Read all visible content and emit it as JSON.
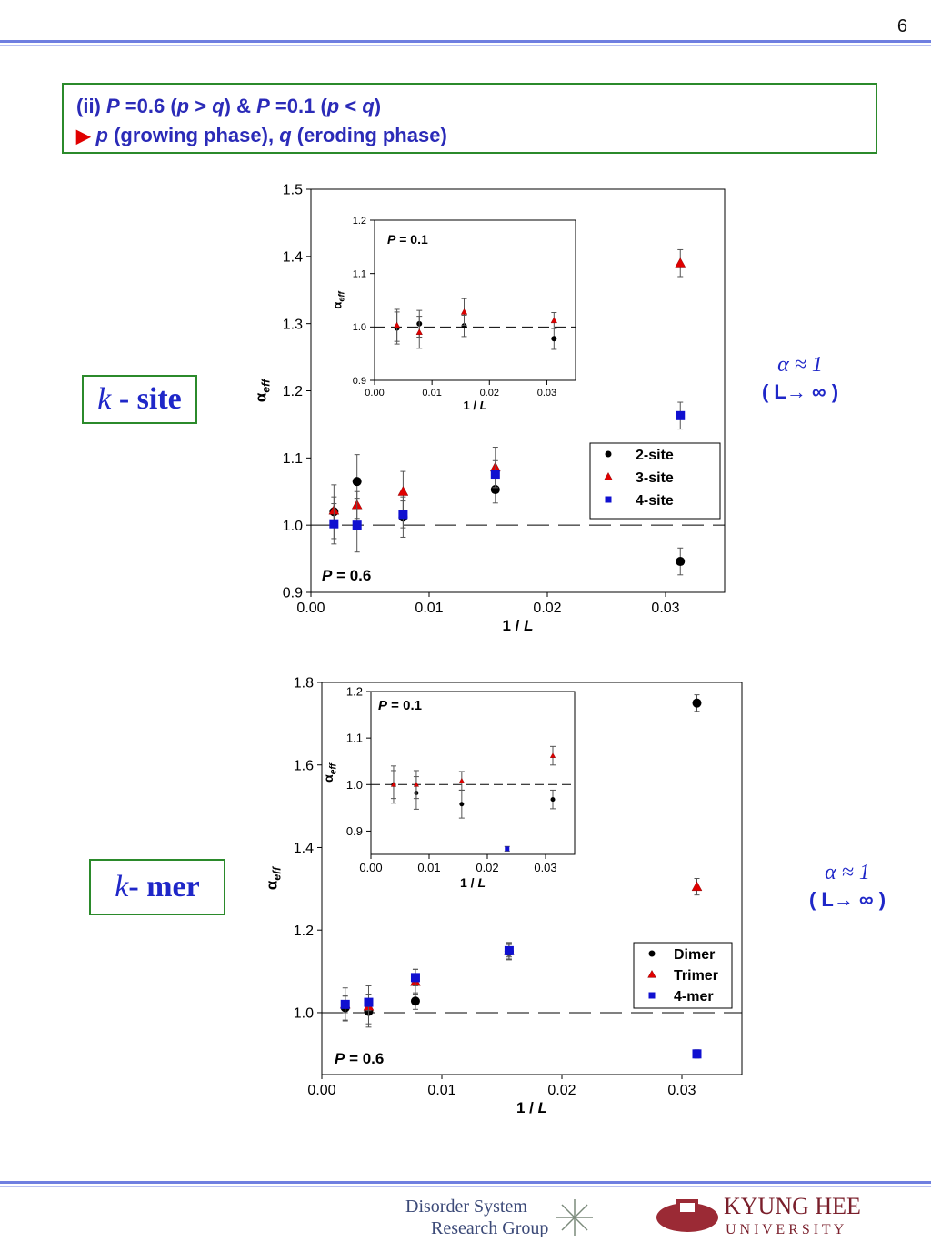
{
  "page_number": "6",
  "heading": {
    "line1_pre": "(ii) ",
    "line1_P": "P",
    "line1_a": " =0.6 (",
    "line1_p": "p",
    "line1_b": " > ",
    "line1_q": "q",
    "line1_c": ")  &  ",
    "line1_P2": "P",
    "line1_d": " =0.1 (",
    "line1_p2": "p",
    "line1_e": " < ",
    "line1_q2": "q",
    "line1_f": ")",
    "line2_arrow": "▶",
    "line2_p": "p",
    "line2_a": " (growing phase), ",
    "line2_q": "q",
    "line2_b": " (eroding phase)"
  },
  "labels": {
    "ksite_k": "k",
    "ksite_rest": " - site",
    "kmer_k": "k",
    "kmer_rest": "- mer",
    "alpha_line": "α ≈ 1",
    "limit_line": "( L→ ∞ )"
  },
  "footer": {
    "dsrg_line1": "Disorder System",
    "dsrg_line2": "Research Group",
    "khu_line1": "KYUNG HEE",
    "khu_line2": "U N I V E R S I T Y"
  },
  "chart_data": [
    {
      "type": "scatter",
      "title": "",
      "xlabel": "1 / L",
      "ylabel": "αeff",
      "xlim": [
        0.0,
        0.035
      ],
      "ylim": [
        0.9,
        1.5
      ],
      "xticks": [
        "0.00",
        "0.01",
        "0.02",
        "0.03"
      ],
      "yticks": [
        "0.9",
        "1.0",
        "1.1",
        "1.2",
        "1.3",
        "1.4",
        "1.5"
      ],
      "annotation": "P = 0.6",
      "reference_line_y": 1.0,
      "legend_position": "right",
      "series": [
        {
          "name": "2-site",
          "marker": "circle",
          "color": "#000000",
          "x": [
            0.00195,
            0.0039,
            0.0078,
            0.0156,
            0.03125
          ],
          "y": [
            1.02,
            1.065,
            1.012,
            1.053,
            0.946
          ],
          "err": [
            0.04,
            0.04,
            0.03,
            0.02,
            0.02
          ]
        },
        {
          "name": "3-site",
          "marker": "triangle",
          "color": "#e00000",
          "x": [
            0.00195,
            0.0039,
            0.0078,
            0.0156,
            0.03125
          ],
          "y": [
            1.022,
            1.03,
            1.05,
            1.086,
            1.39
          ],
          "err": [
            0.02,
            0.02,
            0.03,
            0.03,
            0.02
          ]
        },
        {
          "name": "4-site",
          "marker": "square",
          "color": "#1010d0",
          "x": [
            0.00195,
            0.0039,
            0.0078,
            0.0156,
            0.03125
          ],
          "y": [
            1.002,
            1.0,
            1.016,
            1.076,
            1.163
          ],
          "err": [
            0.03,
            0.04,
            0.02,
            0.02,
            0.02
          ]
        }
      ],
      "inset": {
        "annotation": "P = 0.1",
        "xlabel": "1 / L",
        "ylabel": "αeff",
        "xlim": [
          0.0,
          0.035
        ],
        "ylim": [
          0.9,
          1.2
        ],
        "xticks": [
          "0.00",
          "0.01",
          "0.02",
          "0.03"
        ],
        "yticks": [
          "0.9",
          "1.0",
          "1.1",
          "1.2"
        ],
        "reference_line_y": 1.0,
        "series": [
          {
            "name": "2-site",
            "marker": "circle",
            "color": "#000000",
            "x": [
              0.0039,
              0.0078,
              0.0156,
              0.03125
            ],
            "y": [
              0.998,
              1.006,
              1.002,
              0.978
            ],
            "err": [
              0.03,
              0.025,
              0.02,
              0.02
            ]
          },
          {
            "name": "3-site",
            "marker": "triangle",
            "color": "#e00000",
            "x": [
              0.0039,
              0.0078,
              0.0156,
              0.03125
            ],
            "y": [
              1.003,
              0.99,
              1.028,
              1.012
            ],
            "err": [
              0.03,
              0.03,
              0.025,
              0.015
            ]
          }
        ]
      }
    },
    {
      "type": "scatter",
      "title": "",
      "xlabel": "1 / L",
      "ylabel": "αeff",
      "xlim": [
        0.0,
        0.035
      ],
      "ylim": [
        0.85,
        1.8
      ],
      "xticks": [
        "0.00",
        "0.01",
        "0.02",
        "0.03"
      ],
      "yticks": [
        "1.0",
        "1.2",
        "1.4",
        "1.6",
        "1.8"
      ],
      "annotation": "P = 0.6",
      "reference_line_y": 1.0,
      "legend_position": "bottom-right",
      "series": [
        {
          "name": "Dimer",
          "marker": "circle",
          "color": "#000000",
          "x": [
            0.00195,
            0.0039,
            0.0078,
            0.0156,
            0.03125
          ],
          "y": [
            1.012,
            1.003,
            1.028,
            1.148,
            1.75
          ],
          "err": [
            0.03,
            0.03,
            0.02,
            0.02,
            0.02
          ]
        },
        {
          "name": "Trimer",
          "marker": "triangle",
          "color": "#e00000",
          "x": [
            0.00195,
            0.0039,
            0.0078,
            0.0156,
            0.03125
          ],
          "y": [
            1.02,
            1.015,
            1.075,
            1.15,
            1.305
          ],
          "err": [
            0.04,
            0.05,
            0.03,
            0.02,
            0.02
          ]
        },
        {
          "name": "4-mer",
          "marker": "square",
          "color": "#1010d0",
          "x": [
            0.00195,
            0.0039,
            0.0078,
            0.0156,
            0.03125
          ],
          "y": [
            1.02,
            1.025,
            1.085,
            1.15,
            0.9
          ],
          "err": [
            0.02,
            0.02,
            0.02,
            0.015,
            0.01
          ]
        }
      ],
      "inset": {
        "annotation": "P = 0.1",
        "xlabel": "1 / L",
        "ylabel": "αeff",
        "xlim": [
          0.0,
          0.035
        ],
        "ylim": [
          0.85,
          1.2
        ],
        "xticks": [
          "0.00",
          "0.01",
          "0.02",
          "0.03"
        ],
        "yticks": [
          "0.9",
          "1.0",
          "1.1",
          "1.2"
        ],
        "reference_line_y": 1.0,
        "series": [
          {
            "name": "Dimer",
            "marker": "circle",
            "color": "#000000",
            "x": [
              0.0039,
              0.0078,
              0.0156,
              0.03125
            ],
            "y": [
              1.0,
              0.982,
              0.958,
              0.968
            ],
            "err": [
              0.04,
              0.035,
              0.03,
              0.02
            ]
          },
          {
            "name": "Trimer",
            "marker": "triangle",
            "color": "#e00000",
            "x": [
              0.0039,
              0.0078,
              0.0156,
              0.03125
            ],
            "y": [
              1.0,
              1.0,
              1.008,
              1.062
            ],
            "err": [
              0.03,
              0.03,
              0.02,
              0.02
            ]
          },
          {
            "name": "4-mer",
            "marker": "square",
            "color": "#1010d0",
            "x": [
              0.0234
            ],
            "y": [
              0.862
            ],
            "err": [
              0.005
            ]
          }
        ]
      }
    }
  ]
}
